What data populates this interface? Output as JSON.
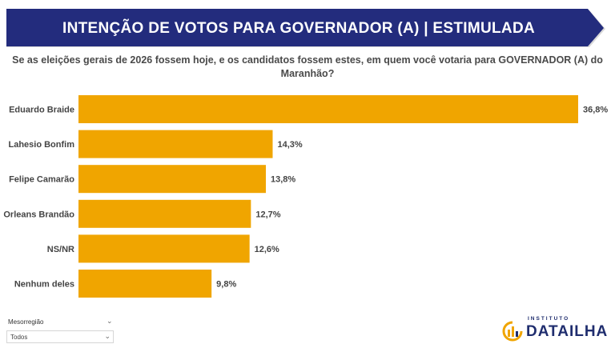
{
  "header": {
    "title": "INTENÇÃO DE VOTOS PARA GOVERNADOR (A) | ESTIMULADA",
    "banner_color": "#232c7d"
  },
  "question": "Se as eleições gerais de 2026 fossem hoje, e os candidatos fossem estes, em quem você votaria para GOVERNADOR (A) do Maranhão?",
  "chart_data": {
    "type": "bar",
    "orientation": "horizontal",
    "categories": [
      "Eduardo Braide",
      "Lahesio Bonfim",
      "Felipe Camarão",
      "Orleans Brandão",
      "NS/NR",
      "Nenhum deles"
    ],
    "values": [
      36.8,
      14.3,
      13.8,
      12.7,
      12.6,
      9.8
    ],
    "data_labels": [
      "36,8%",
      "14,3%",
      "13,8%",
      "12,7%",
      "12,6%",
      "9,8%"
    ],
    "unit": "%",
    "xlim": [
      0,
      36.8
    ],
    "bar_color": "#f0a500",
    "title": "",
    "xlabel": "",
    "ylabel": ""
  },
  "filter": {
    "label": "Mesorregião",
    "value": "Todos"
  },
  "logo": {
    "small_text": "INSTITUTO",
    "big_text": "DATAILHA",
    "color": "#1f2d6e",
    "accent": "#f0a500"
  }
}
